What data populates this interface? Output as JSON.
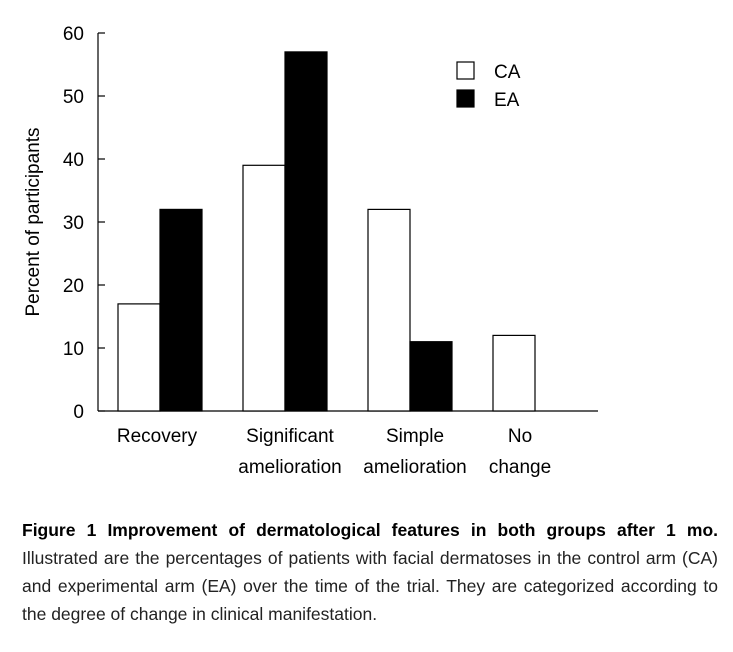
{
  "chart_data": {
    "type": "bar",
    "title": "",
    "xlabel": "",
    "ylabel": "Percent of participants",
    "ylim": [
      0,
      60
    ],
    "yticks": [
      0,
      10,
      20,
      30,
      40,
      50,
      60
    ],
    "categories": [
      [
        "Recovery"
      ],
      [
        "Significant",
        "amelioration"
      ],
      [
        "Simple",
        "amelioration"
      ],
      [
        "No",
        "change"
      ]
    ],
    "series": [
      {
        "name": "CA",
        "color": "#ffffff",
        "values": [
          17,
          39,
          32,
          12
        ]
      },
      {
        "name": "EA",
        "color": "#000000",
        "values": [
          32,
          57,
          11,
          null
        ]
      }
    ],
    "legend": "top-right"
  },
  "caption": {
    "bold": "Figure 1  Improvement of dermatological features in both groups after 1 mo.",
    "text": " Illustrated are the percentages of patients with facial dermatoses in the control arm (CA) and experimental arm (EA) over the time of the trial. They are categorized according to the degree of change in clinical manifestation."
  }
}
